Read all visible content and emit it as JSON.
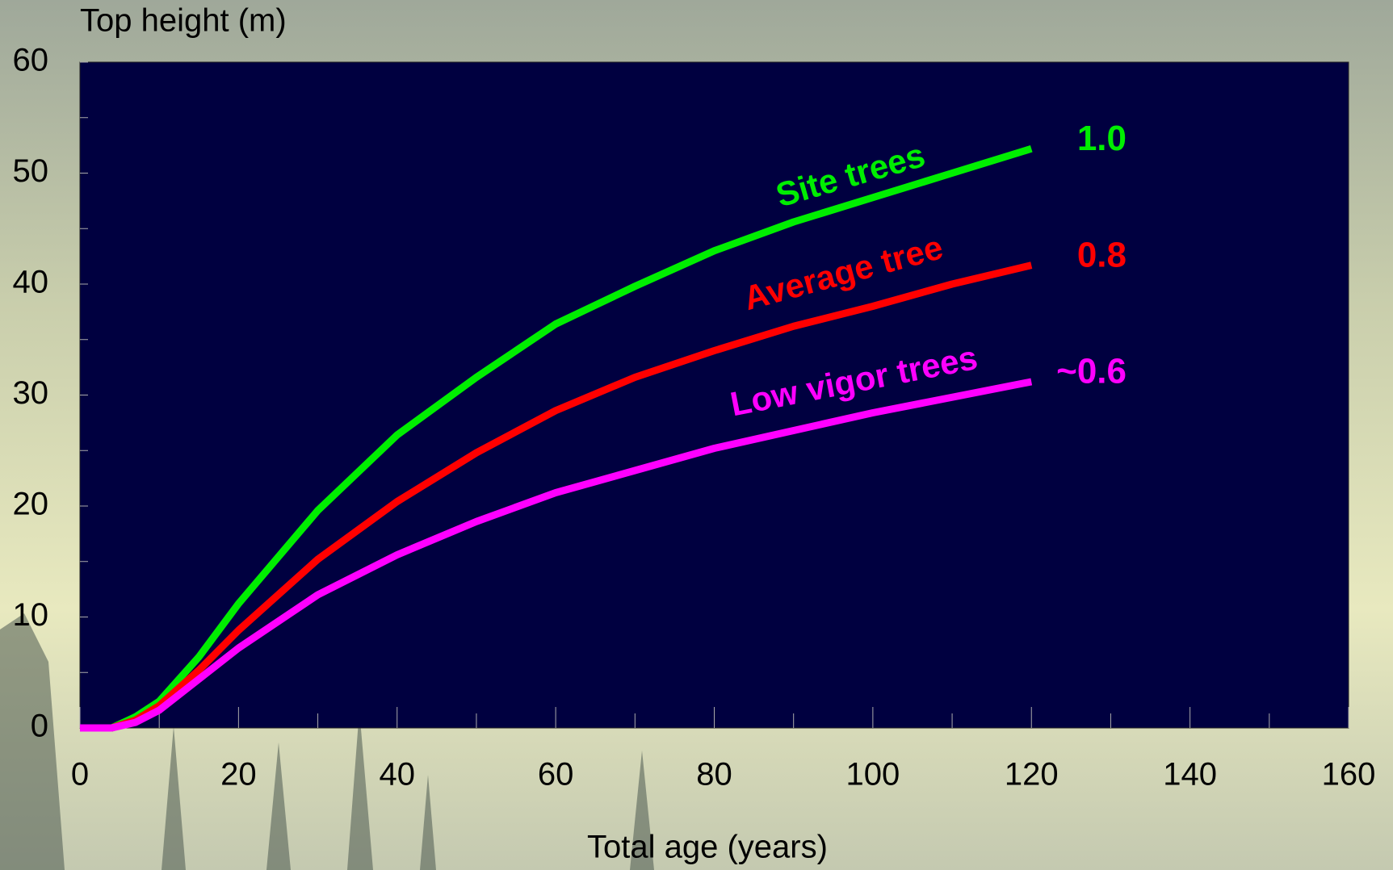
{
  "chart_data": {
    "type": "line",
    "y_label": "Top height (m)",
    "x_label": "Total age (years)",
    "x": [
      0,
      4,
      7,
      10,
      15,
      20,
      30,
      40,
      50,
      60,
      70,
      80,
      90,
      100,
      110,
      120
    ],
    "series": [
      {
        "name": "Site trees",
        "color": "#00ee00",
        "end_label": "1.0",
        "values": [
          0,
          0,
          1,
          2.4,
          6.4,
          11.2,
          19.6,
          26.4,
          31.6,
          36.4,
          39.8,
          43,
          45.6,
          47.8,
          50,
          52.2
        ]
      },
      {
        "name": "Average tree",
        "color": "#ff0000",
        "end_label": "0.8",
        "values": [
          0,
          0,
          0.7,
          2,
          5.2,
          8.8,
          15.2,
          20.4,
          24.8,
          28.6,
          31.6,
          34,
          36.2,
          38,
          40,
          41.7
        ]
      },
      {
        "name": "Low vigor trees",
        "color": "#ff00ff",
        "end_label": "~0.6",
        "values": [
          0,
          0,
          0.5,
          1.6,
          4.4,
          7.2,
          12,
          15.6,
          18.6,
          21.2,
          23.2,
          25.2,
          26.8,
          28.4,
          29.8,
          31.2
        ]
      }
    ],
    "xlim": [
      0,
      160
    ],
    "xticks": [
      0,
      20,
      40,
      60,
      80,
      100,
      120,
      140,
      160
    ],
    "xminor": [
      10,
      30,
      50,
      70,
      90,
      110,
      130,
      150
    ],
    "ylim": [
      0,
      60
    ],
    "yticks": [
      0,
      10,
      20,
      30,
      40,
      50,
      60
    ],
    "yminor": [
      5,
      15,
      25,
      35,
      45,
      55
    ],
    "plot_background": "#000040"
  }
}
